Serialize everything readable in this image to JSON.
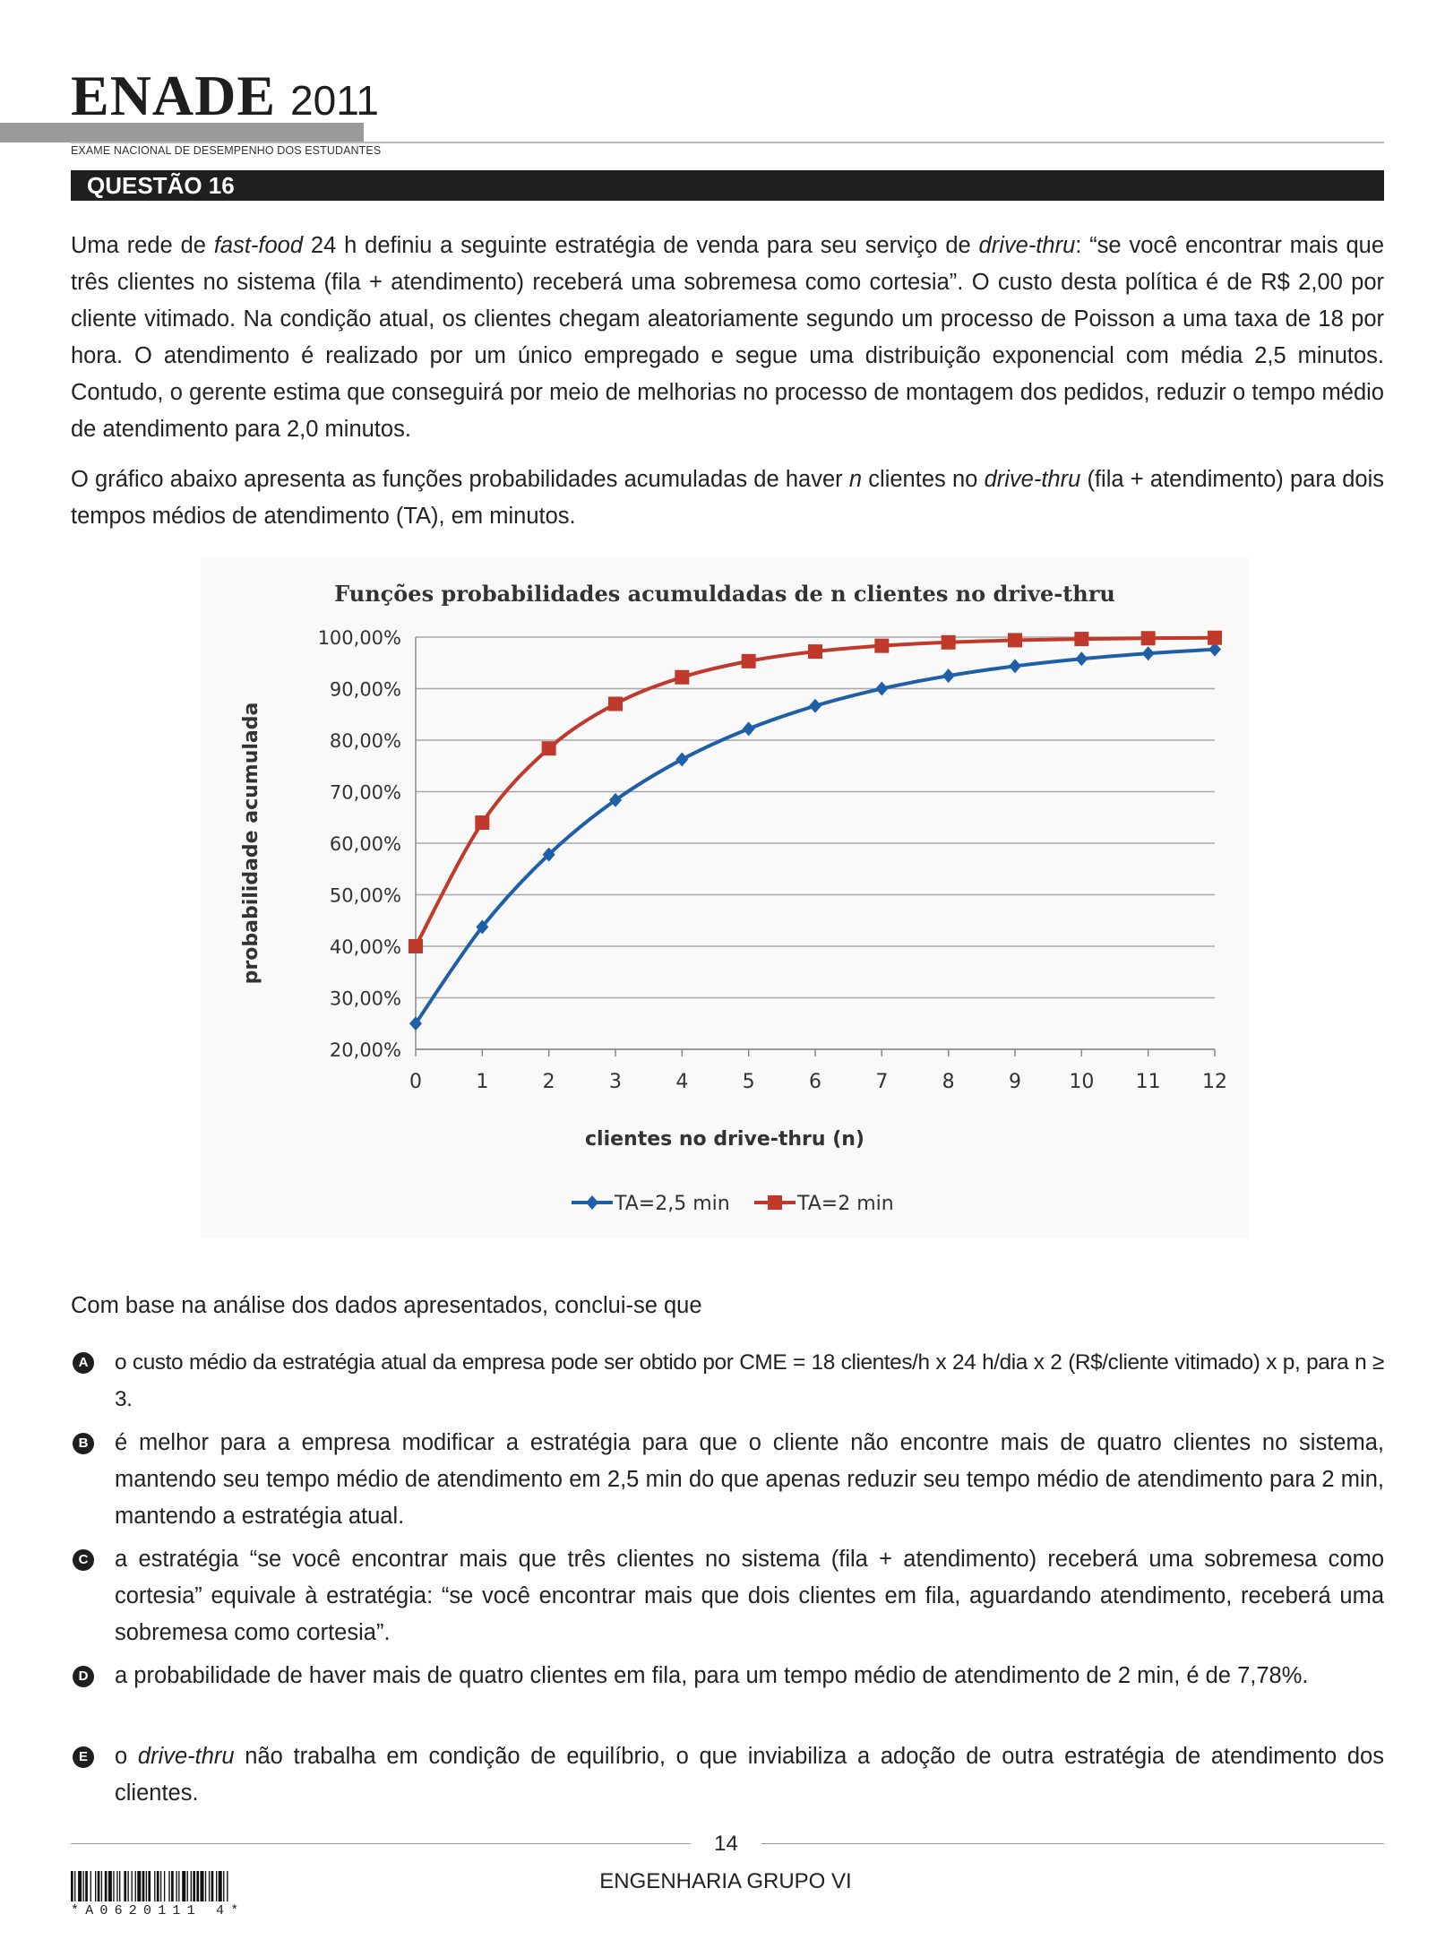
{
  "header": {
    "brand": "ENADE",
    "year": "2011",
    "subtitle": "EXAME NACIONAL DE DESEMPENHO DOS ESTUDANTES"
  },
  "question": {
    "label": "QUESTÃO 16",
    "para1": [
      {
        "t": "Uma rede de "
      },
      {
        "t": "fast-food",
        "i": true
      },
      {
        "t": " 24 h definiu a seguinte estratégia de venda para seu serviço de "
      },
      {
        "t": "drive-thru",
        "i": true
      },
      {
        "t": ": “se você encontrar mais que três clientes no sistema (fila + atendimento) receberá uma sobremesa como cortesia”. O custo desta política é de R$ 2,00 por cliente vitimado. Na condição atual, os clientes chegam aleatoriamente segundo um processo de Poisson a uma taxa de 18 por hora. O atendimento é realizado por um único empregado e segue uma distribuição exponencial com média 2,5 minutos. Contudo, o gerente estima que conseguirá por meio de melhorias no processo de montagem dos pedidos, reduzir o tempo médio de atendimento para 2,0 minutos."
      }
    ],
    "para2": [
      {
        "t": "O gráfico abaixo apresenta as funções probabilidades acumuladas de haver "
      },
      {
        "t": "n",
        "i": true
      },
      {
        "t": " clientes no "
      },
      {
        "t": "drive-thru",
        "i": true
      },
      {
        "t": " (fila + atendimento) para dois tempos médios de atendimento (TA), em minutos."
      }
    ],
    "para3": "Com base na análise dos dados apresentados, conclui-se que"
  },
  "chart_data": {
    "type": "line",
    "title": "Funções probabilidades acumuldadas de n clientes no drive-thru",
    "xlabel": "clientes no drive-thru (n)",
    "ylabel": "probabilidade acumulada",
    "x": [
      0,
      1,
      2,
      3,
      4,
      5,
      6,
      7,
      8,
      9,
      10,
      11,
      12
    ],
    "ylim": [
      20,
      100
    ],
    "yticks": [
      "20,00%",
      "30,00%",
      "40,00%",
      "50,00%",
      "60,00%",
      "70,00%",
      "80,00%",
      "90,00%",
      "100,00%"
    ],
    "grid": true,
    "legend": "bottom",
    "series": [
      {
        "name": "TA=2,5 min",
        "color": "#1f5fa8",
        "marker": "diamond",
        "values": [
          25.0,
          43.75,
          57.81,
          68.36,
          76.27,
          82.2,
          86.65,
          89.99,
          92.49,
          94.37,
          95.78,
          96.83,
          97.62
        ]
      },
      {
        "name": "TA=2 min",
        "color": "#c0392b",
        "marker": "square",
        "values": [
          40.0,
          64.0,
          78.4,
          87.04,
          92.22,
          95.33,
          97.2,
          98.32,
          98.99,
          99.4,
          99.64,
          99.78,
          99.87
        ]
      }
    ]
  },
  "options": [
    {
      "letter": "A",
      "parts": [
        {
          "t": "o custo médio da estratégia atual da empresa pode ser obtido por CME = 18 clientes/h x 24 h/dia x 2 (R$/cliente vitimado) x p, para n ≥ 3."
        }
      ]
    },
    {
      "letter": "B",
      "parts": [
        {
          "t": "é melhor para a empresa modificar a estratégia para que o cliente não encontre mais de quatro clientes no sistema, mantendo seu tempo médio de atendimento em 2,5 min do que apenas reduzir seu tempo médio de atendimento para 2 min, mantendo a estratégia atual."
        }
      ]
    },
    {
      "letter": "C",
      "parts": [
        {
          "t": "a estratégia “se você encontrar mais que três clientes no sistema (fila + atendimento) receberá uma sobremesa como cortesia” equivale à estratégia: “se você encontrar mais que dois clientes em fila, aguardando atendimento, receberá uma sobremesa como cortesia”."
        }
      ]
    },
    {
      "letter": "D",
      "parts": [
        {
          "t": "a probabilidade de haver mais de quatro clientes em fila, para um tempo médio de atendimento de 2 min, é de 7,78%."
        }
      ]
    },
    {
      "letter": "E",
      "parts": [
        {
          "t": "o "
        },
        {
          "t": "drive-thru",
          "i": true
        },
        {
          "t": " não trabalha em condição de equilíbrio, o que inviabiliza a adoção de outra estratégia de atendimento dos clientes."
        }
      ]
    }
  ],
  "footer": {
    "page": "14",
    "label": "ENGENHARIA GRUPO VI",
    "barcode_text": "*A0620111 4*"
  }
}
